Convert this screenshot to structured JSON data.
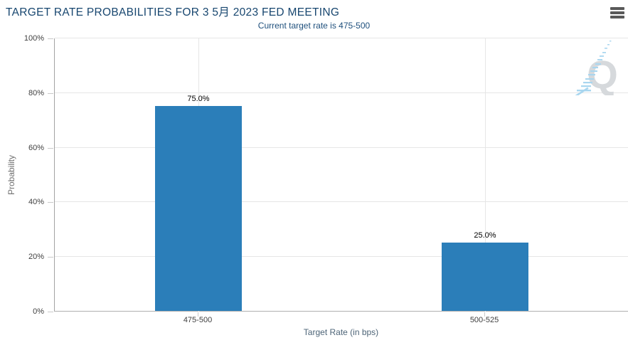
{
  "header": {
    "menu_icon": "hamburger-menu"
  },
  "chart_data": {
    "type": "bar",
    "title": "TARGET RATE PROBABILITIES FOR 3 5月 2023 FED MEETING",
    "subtitle": "Current target rate is 475-500",
    "categories": [
      "475-500",
      "500-525"
    ],
    "values": [
      75.0,
      25.0
    ],
    "value_labels": [
      "75.0%",
      "25.0%"
    ],
    "xlabel": "Target Rate (in bps)",
    "ylabel": "Probability",
    "ylim": [
      0,
      100
    ],
    "y_tick_values": [
      0,
      20,
      40,
      60,
      80,
      100
    ],
    "y_tick_labels": [
      "0%",
      "20%",
      "40%",
      "60%",
      "80%",
      "100%"
    ],
    "grid": true,
    "legend": "none",
    "colors": {
      "bar": "#2b7eb9",
      "title": "#17466f",
      "subtitle": "#1e4f7c",
      "gridline": "#e6e6e6",
      "axis_line": "#a3a3a3",
      "tick_text": "#3f3f3f"
    }
  },
  "watermark": {
    "letter": "Q",
    "name": "quikstrike-logo"
  }
}
